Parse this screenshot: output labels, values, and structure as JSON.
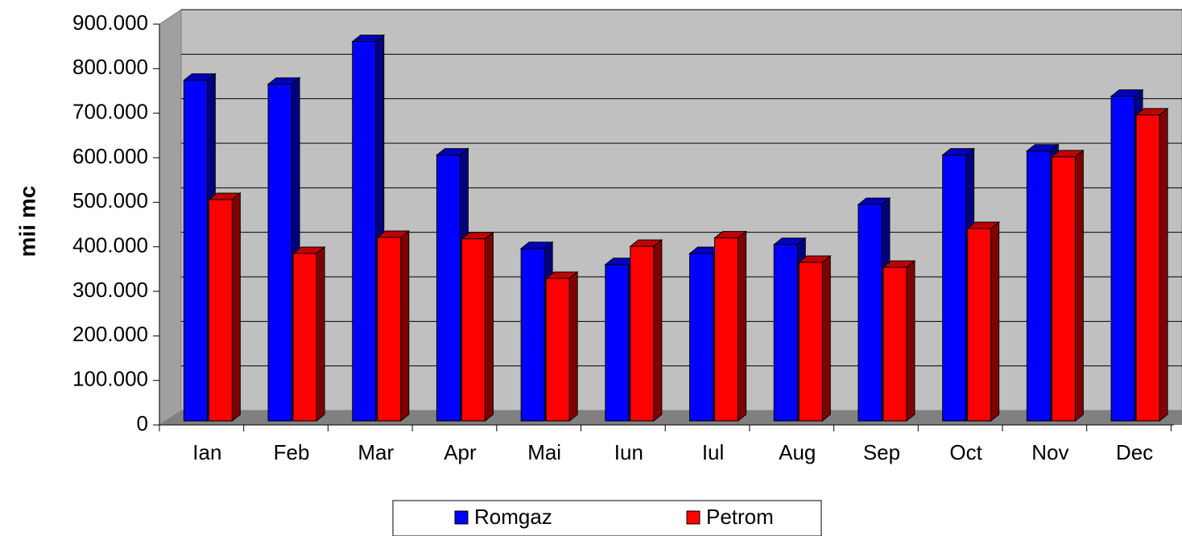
{
  "chart_data": {
    "type": "bar3d",
    "y_label": "mii mc",
    "categories": [
      "Ian",
      "Feb",
      "Mar",
      "Apr",
      "Mai",
      "Iun",
      "Iul",
      "Aug",
      "Sep",
      "Oct",
      "Nov",
      "Dec"
    ],
    "series": [
      {
        "name": "Romgaz",
        "color": "#0000ff",
        "values": [
          774000,
          765000,
          861000,
          606000,
          396000,
          360000,
          385000,
          405000,
          495000,
          606000,
          615000,
          738000
        ]
      },
      {
        "name": "Petrom",
        "color": "#ff0000",
        "values": [
          506000,
          385000,
          421000,
          418000,
          329000,
          401000,
          420000,
          365000,
          354000,
          441000,
          602000,
          696000
        ]
      }
    ],
    "ylim": [
      0,
      900000
    ],
    "yticks": [
      0,
      {
        "value": 100000,
        "label": "100.000"
      },
      {
        "value": 200000,
        "label": "200.000"
      },
      {
        "value": 300000,
        "label": "300.000"
      },
      {
        "value": 400000,
        "label": "400.000"
      },
      {
        "value": 500000,
        "label": "500.000"
      },
      {
        "value": 600000,
        "label": "600.000"
      },
      {
        "value": 700000,
        "label": "700.000"
      },
      {
        "value": 800000,
        "label": "800.000"
      },
      {
        "value": 900000,
        "label": "900.000"
      }
    ],
    "grid": true,
    "legend": "bottom"
  }
}
